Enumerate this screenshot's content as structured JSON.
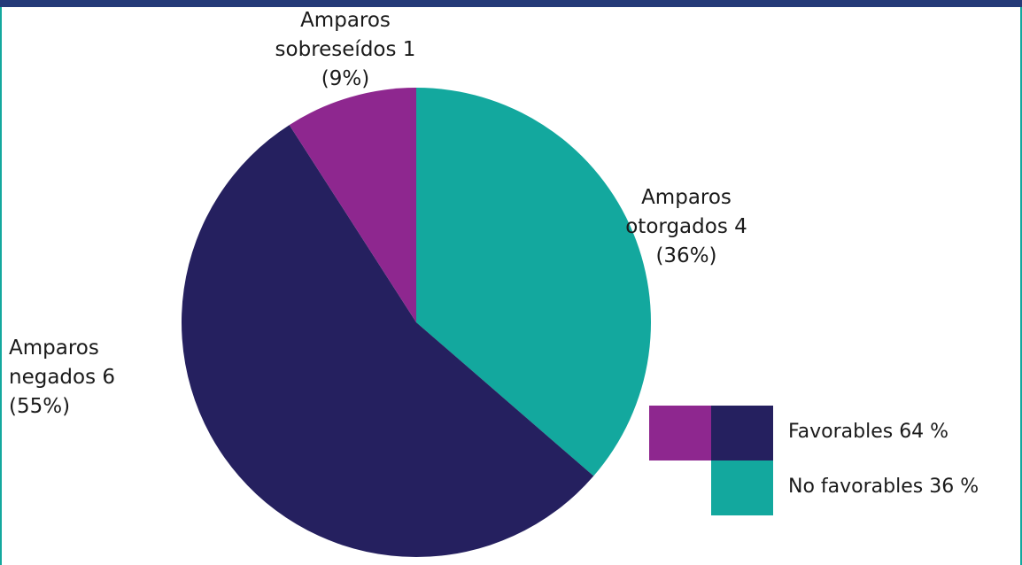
{
  "chart_data": {
    "type": "pie",
    "categories": [
      "Amparos otorgados",
      "Amparos negados",
      "Amparos sobreseídos"
    ],
    "values": [
      4,
      6,
      1
    ],
    "value_labels": [
      "4 (36%)",
      "6 (55%)",
      "1 (9%)"
    ],
    "colors": [
      "#13a89e",
      "#25205f",
      "#8e278f"
    ],
    "legend": [
      {
        "label": "Favorables 64 %",
        "colors": [
          "#8e278f",
          "#25205f"
        ]
      },
      {
        "label": "No favorables 36 %",
        "colors": [
          "#13a89e"
        ]
      }
    ]
  }
}
